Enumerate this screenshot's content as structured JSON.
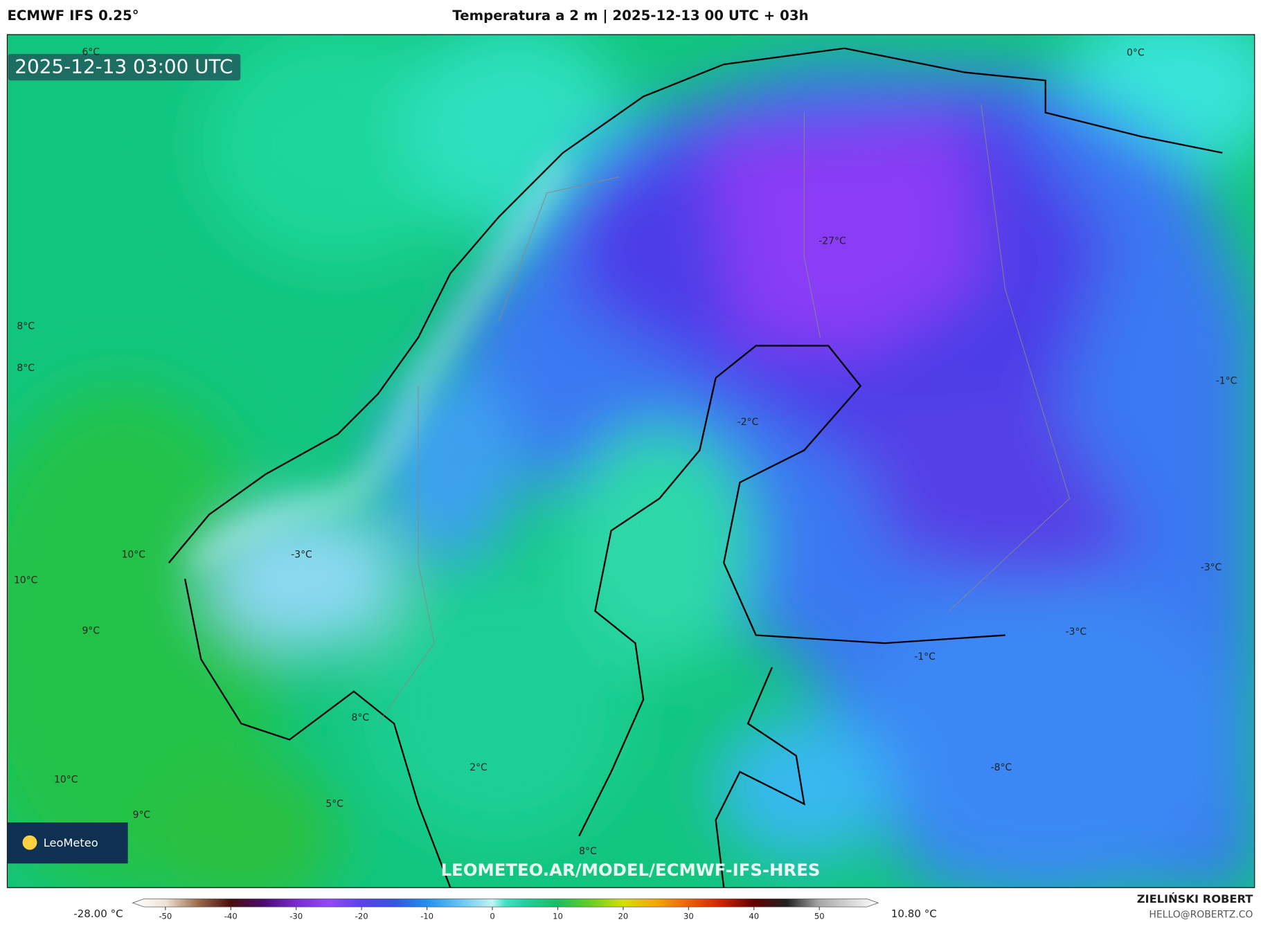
{
  "header": {
    "model": "ECMWF IFS 0.25°",
    "title": "Temperatura a 2 m | 2025-12-13 00 UTC + 03h"
  },
  "map": {
    "timestamp": "2025-12-13 03:00 UTC",
    "labels": [
      "6°C",
      "0°C",
      "8°C",
      "8°C",
      "-27°C",
      "-1°C",
      "-2°C",
      "10°C",
      "10°C",
      "-3°C",
      "-3°C",
      "9°C",
      "-3°C",
      "-1°C",
      "8°C",
      "-8°C",
      "2°C",
      "10°C",
      "5°C",
      "9°C",
      "8°C"
    ],
    "logo": "LeoMeteo",
    "watermark": "LEOMETEO.AR/MODEL/ECMWF-IFS-HRES"
  },
  "colorbar": {
    "min_label": "-28.00 °C",
    "max_label": "10.80 °C",
    "lim": [
      -55,
      59
    ],
    "ticks": [
      -50,
      -40,
      -30,
      -20,
      -10,
      0,
      10,
      20,
      30,
      40,
      50
    ]
  },
  "footer": {
    "author": "ZIELIŃSKI ROBERT",
    "email": "HELLO@ROBERTZ.CO"
  }
}
